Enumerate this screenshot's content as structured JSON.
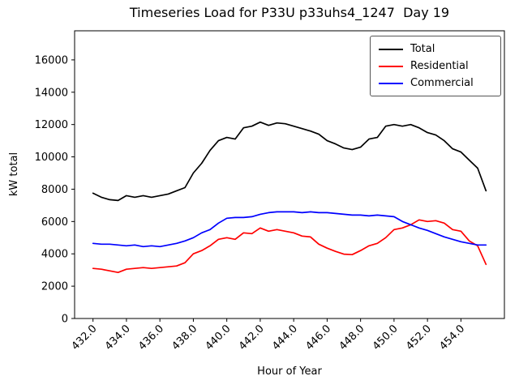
{
  "figure": {
    "background": "#ffffff"
  },
  "chart_data": {
    "type": "line",
    "title": "Timeseries Load for P33U p33uhs4_1247  Day 19",
    "xlabel": "Hour of Year",
    "ylabel": "kW total",
    "xlim": [
      430.9,
      456.6
    ],
    "ylim": [
      0,
      17800
    ],
    "xticks": [
      432,
      434,
      436,
      438,
      440,
      442,
      444,
      446,
      448,
      450,
      452,
      454
    ],
    "yticks": [
      0,
      2000,
      4000,
      6000,
      8000,
      10000,
      12000,
      14000,
      16000
    ],
    "grid": false,
    "legend_position": "upper right",
    "x": [
      432.0,
      432.5,
      433.0,
      433.5,
      434.0,
      434.5,
      435.0,
      435.5,
      436.0,
      436.5,
      437.0,
      437.5,
      438.0,
      438.5,
      439.0,
      439.5,
      440.0,
      440.5,
      441.0,
      441.5,
      442.0,
      442.5,
      443.0,
      443.5,
      444.0,
      444.5,
      445.0,
      445.5,
      446.0,
      446.5,
      447.0,
      447.5,
      448.0,
      448.5,
      449.0,
      449.5,
      450.0,
      450.5,
      451.0,
      451.5,
      452.0,
      452.5,
      453.0,
      453.5,
      454.0,
      454.5,
      455.0,
      455.5
    ],
    "series": [
      {
        "name": "Total",
        "color": "#000000",
        "values": [
          7750,
          7500,
          7350,
          7300,
          7600,
          7500,
          7600,
          7500,
          7600,
          7700,
          7900,
          8100,
          9000,
          9600,
          10400,
          11000,
          11200,
          11100,
          11800,
          11900,
          12150,
          11950,
          12100,
          12050,
          11900,
          11750,
          11600,
          11400,
          11000,
          10800,
          10550,
          10450,
          10600,
          11100,
          11200,
          11900,
          12000,
          11900,
          12000,
          11800,
          11500,
          11350,
          11000,
          10500,
          10300,
          9800,
          9300,
          7900
        ]
      },
      {
        "name": "Residential",
        "color": "#ff0000",
        "values": [
          3100,
          3050,
          2950,
          2850,
          3050,
          3100,
          3150,
          3100,
          3150,
          3200,
          3250,
          3450,
          4000,
          4200,
          4500,
          4900,
          5000,
          4900,
          5300,
          5250,
          5600,
          5400,
          5500,
          5400,
          5300,
          5100,
          5050,
          4600,
          4350,
          4150,
          3980,
          3950,
          4200,
          4500,
          4650,
          5000,
          5500,
          5600,
          5800,
          6100,
          6000,
          6050,
          5900,
          5500,
          5400,
          4800,
          4500,
          3350
        ]
      },
      {
        "name": "Commercial",
        "color": "#0000ff",
        "values": [
          4650,
          4600,
          4600,
          4550,
          4500,
          4550,
          4450,
          4500,
          4450,
          4550,
          4650,
          4800,
          5000,
          5300,
          5500,
          5900,
          6200,
          6250,
          6250,
          6300,
          6450,
          6550,
          6600,
          6600,
          6600,
          6550,
          6600,
          6550,
          6550,
          6500,
          6450,
          6400,
          6400,
          6350,
          6400,
          6350,
          6300,
          6000,
          5800,
          5600,
          5450,
          5250,
          5050,
          4900,
          4750,
          4650,
          4550,
          4550
        ]
      }
    ]
  }
}
